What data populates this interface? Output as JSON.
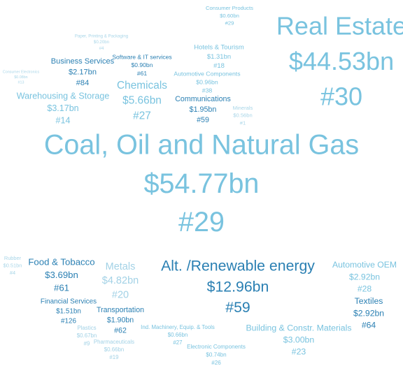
{
  "chart_data": {
    "type": "wordcloud",
    "categories": [
      "Real Estate",
      "Coal, Oil and Natural Gas",
      "Alt. /Renewable energy",
      "Consumer Products",
      "Paper, Printing & Packaging",
      "Business Services",
      "Software & IT services",
      "Hotels & Tourism",
      "Automotive Components",
      "Chemicals",
      "Communications",
      "Minerals",
      "Warehousing & Storage",
      "Consumer Electronics",
      "Food & Tobacco",
      "Metals",
      "Automotive OEM",
      "Textiles",
      "Financial Services",
      "Transportation",
      "Building & Constr. Materials",
      "Ind. Machinery, Equip. & Tools",
      "Electronic Components",
      "Plastics",
      "Pharmaceuticals",
      "Rubber"
    ],
    "values": [
      44.53,
      54.77,
      12.96,
      0.6,
      0.2,
      2.17,
      0.9,
      1.31,
      0.96,
      5.66,
      1.95,
      0.56,
      3.17,
      0.08,
      3.69,
      4.82,
      2.92,
      2.92,
      1.51,
      1.9,
      3.0,
      0.66,
      0.74,
      0.67,
      0.66,
      0.51
    ],
    "value_labels": [
      "$44.53bn",
      "$54.77bn",
      "$12.96bn",
      "$0.60bn",
      "$0.20bn",
      "$2.17bn",
      "$0.90bn",
      "$1.31bn",
      "$0.96bn",
      "$5.66bn",
      "$1.95bn",
      "$0.56bn",
      "$3.17bn",
      "$0.08bn",
      "$3.69bn",
      "$4.82bn",
      "$2.92bn",
      "$2.92bn",
      "$1.51bn",
      "$1.90bn",
      "$3.00bn",
      "$0.66bn",
      "$0.74bn",
      "$0.67bn",
      "$0.66bn",
      "$0.51bn"
    ],
    "ranks": [
      "#30",
      "#29",
      "#59",
      "#29",
      "#4",
      "#84",
      "#61",
      "#18",
      "#38",
      "#27",
      "#59",
      "#1",
      "#14",
      "#13",
      "#61",
      "#20",
      "#28",
      "#64",
      "#126",
      "#62",
      "#23",
      "#27",
      "#26",
      "#9",
      "#19",
      "#4"
    ],
    "colors": [
      "#79c3df",
      "#79c3df",
      "#2b80b3",
      "#79c3df",
      "#a9d6e8",
      "#2b80b3",
      "#2b80b3",
      "#79c3df",
      "#79c3df",
      "#79c3df",
      "#2b80b3",
      "#a9d6e8",
      "#79c3df",
      "#a9d6e8",
      "#2b80b3",
      "#a3d2e6",
      "#79c3df",
      "#2b80b3",
      "#2b80b3",
      "#2b80b3",
      "#79c3df",
      "#79c3df",
      "#79c3df",
      "#a3d2e6",
      "#a3d2e6",
      "#a9d6e8"
    ]
  }
}
